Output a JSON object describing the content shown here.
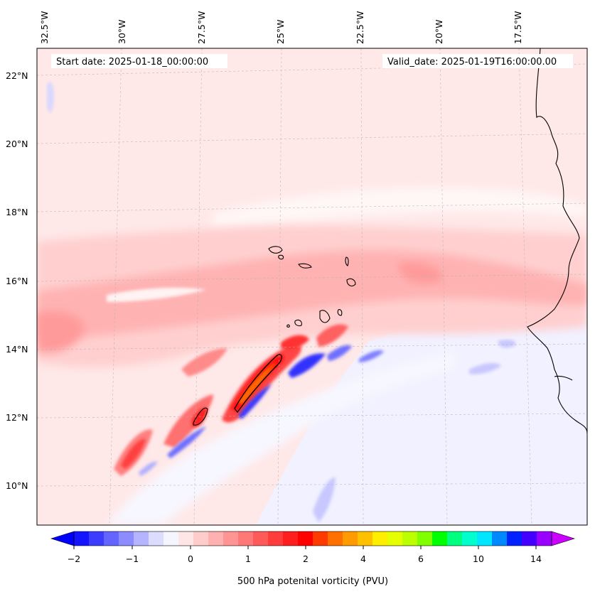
{
  "map": {
    "start_date": "Start date: 2025-01-18_00:00:00",
    "valid_date": "Valid_date: 2025-01-19T16:00:00.00",
    "lon_labels": [
      "32.5°W",
      "30°W",
      "27.5°W",
      "25°W",
      "22.5°W",
      "20°W",
      "17.5°W"
    ],
    "lat_labels": [
      "22°N",
      "20°N",
      "18°N",
      "16°N",
      "14°N",
      "12°N",
      "10°N"
    ],
    "background_color": "#ffe8e8",
    "low_region_color": "#f0f0ff",
    "coastline_color": "#000000"
  },
  "colorbar": {
    "label": "500 hPa potenital vorticity (PVU)",
    "tick_labels": [
      "−2",
      "−1",
      "0",
      "1",
      "2",
      "4",
      "6",
      "10",
      "14"
    ],
    "under_color": "#0000ff",
    "over_color": "#cc00ff",
    "colors": [
      "#1414ff",
      "#3c3cff",
      "#6464ff",
      "#8c8cff",
      "#b4b4ff",
      "#dcdcff",
      "#f5f5ff",
      "#ffe6e6",
      "#ffcccc",
      "#ffb0b0",
      "#ff9494",
      "#ff7878",
      "#ff5a5a",
      "#ff3c3c",
      "#ff1e1e",
      "#ff0000",
      "#ff3a00",
      "#ff7000",
      "#ff9a00",
      "#ffc000",
      "#ffee00",
      "#e6ff00",
      "#bbff00",
      "#80ff00",
      "#00ff00",
      "#00ff80",
      "#00ffcc",
      "#00e6ff",
      "#0088ff",
      "#0022ff",
      "#4400ff",
      "#9900ff"
    ]
  }
}
